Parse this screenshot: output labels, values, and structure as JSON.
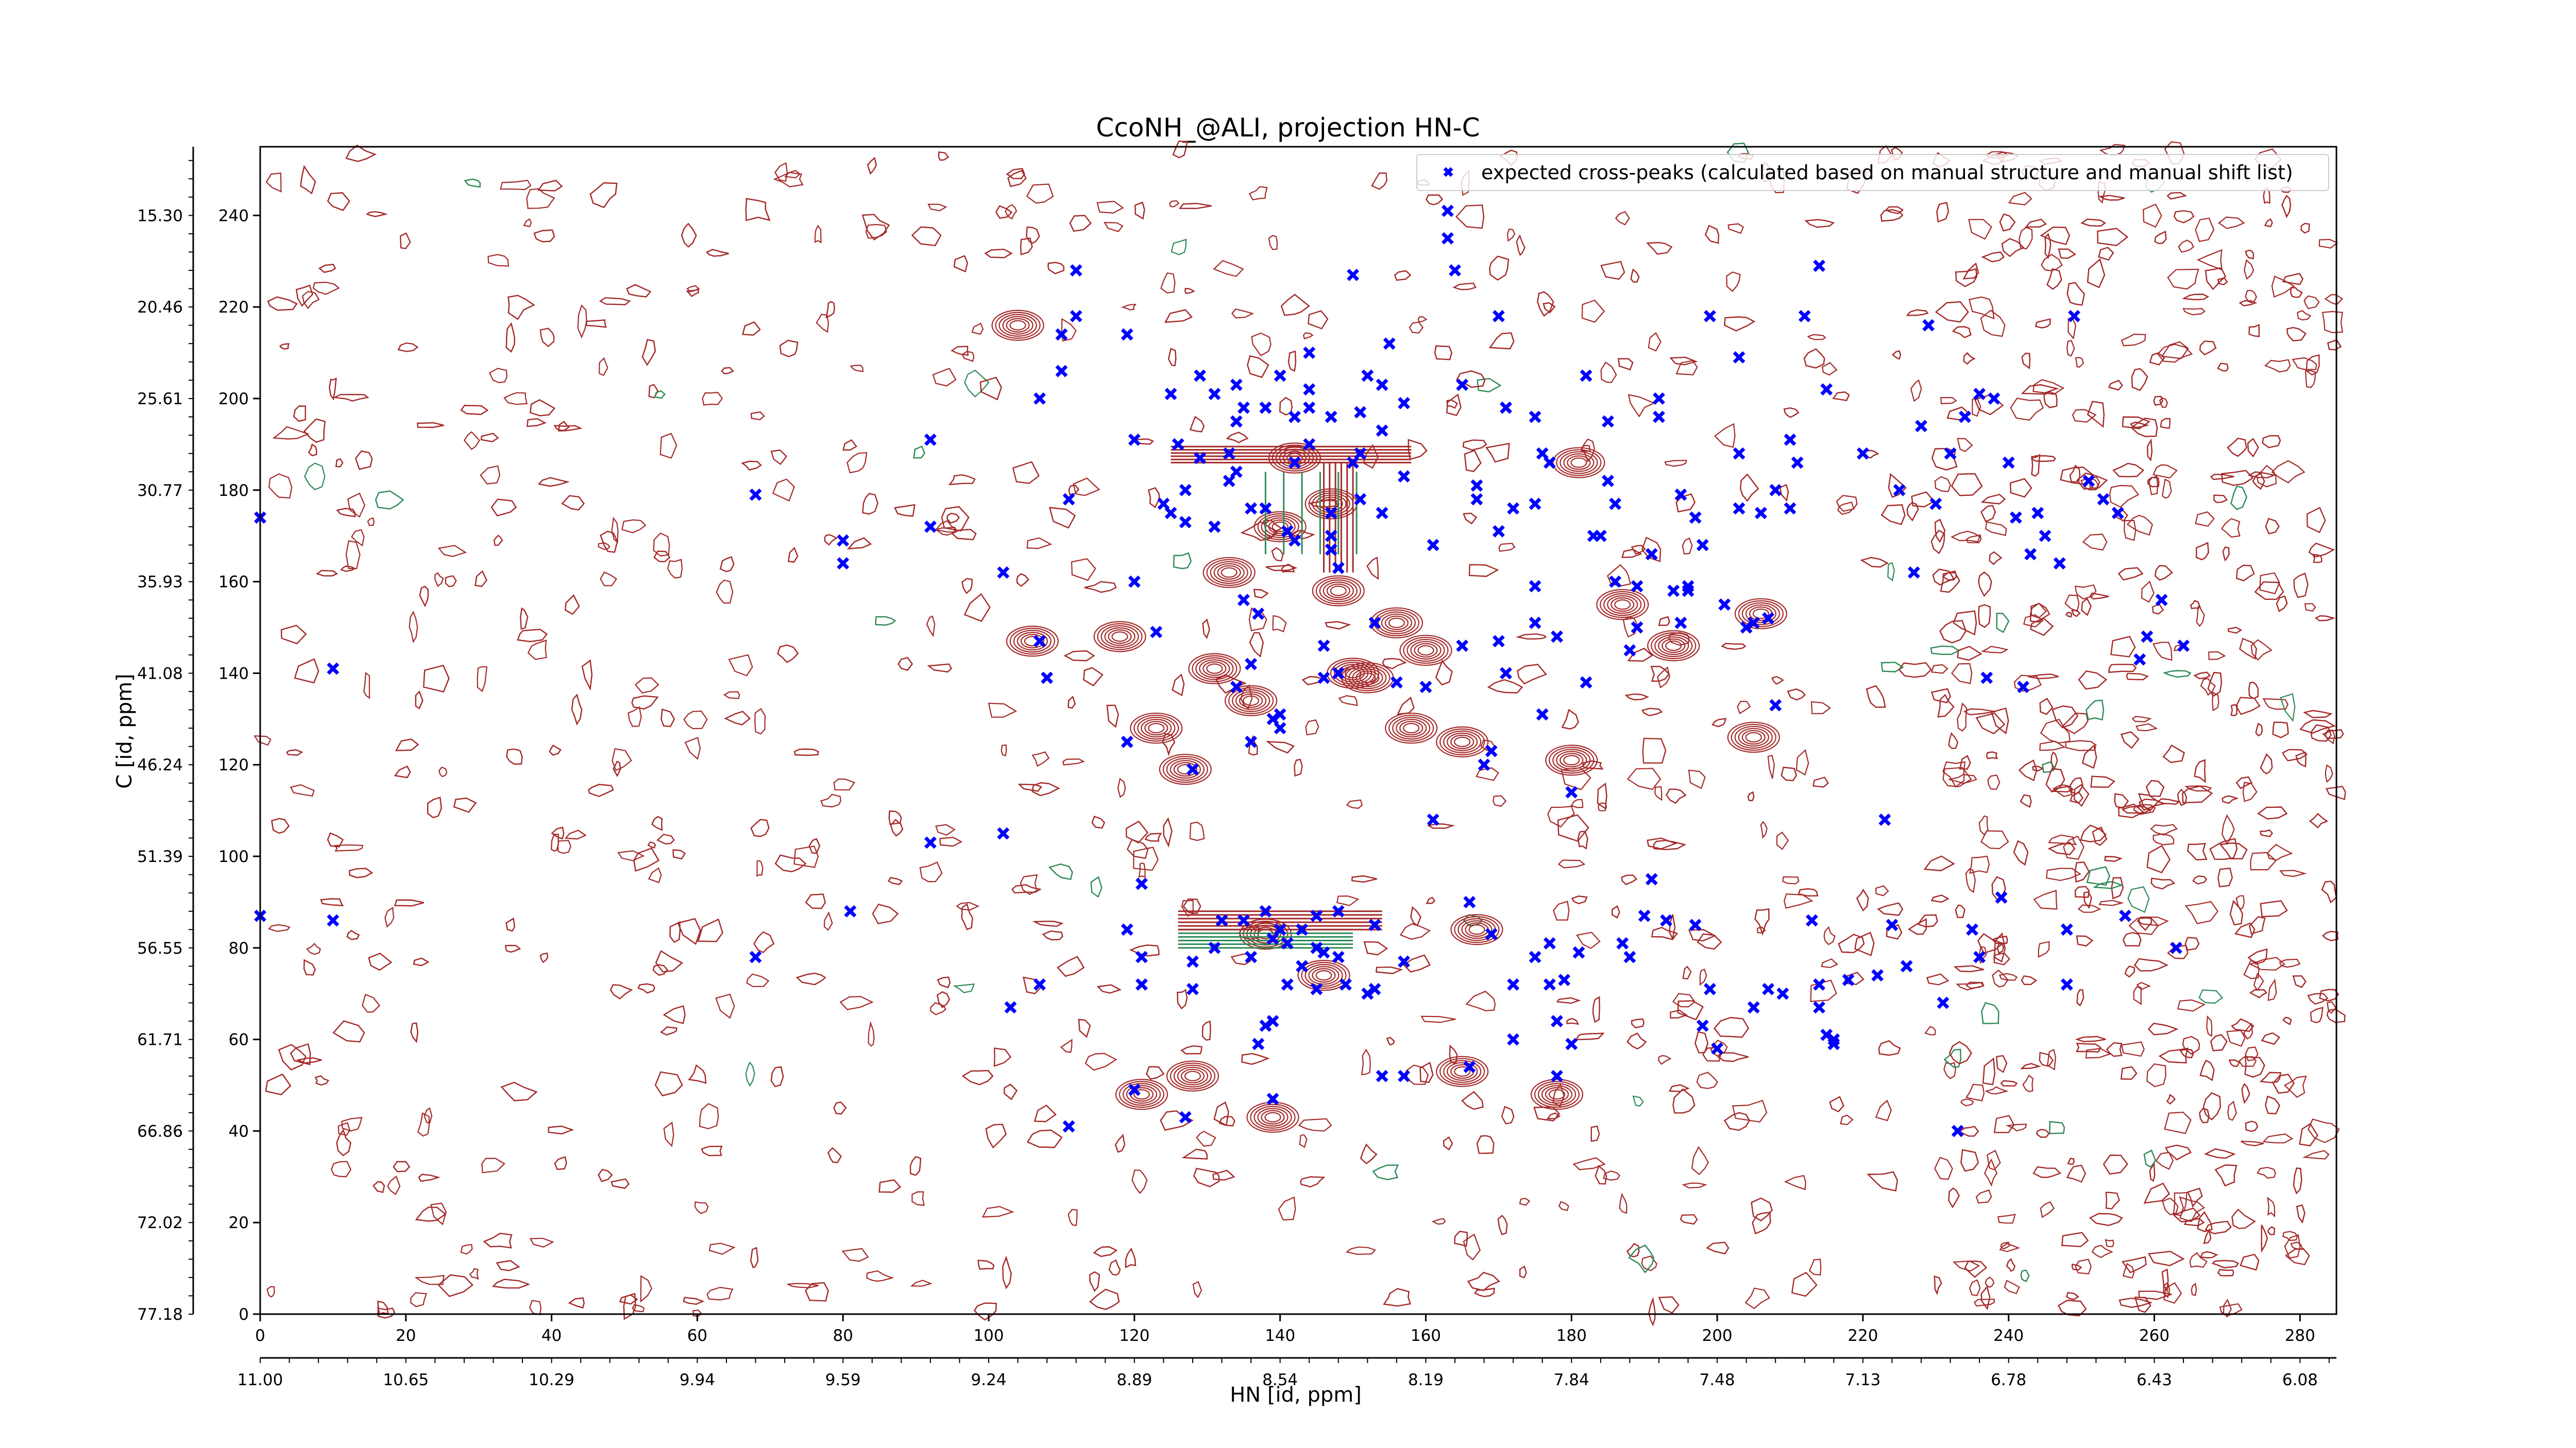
{
  "chart_data": {
    "type": "scatter",
    "title": "CcoNH_@ALI, projection HN-C",
    "xlabel": "HN [id, ppm]",
    "ylabel": "C [id, ppm]",
    "xlim": [
      0,
      285
    ],
    "ylim": [
      0,
      255
    ],
    "grid": false,
    "legend_position": "top-right",
    "x_index_ticks": [
      "0",
      "20",
      "40",
      "60",
      "80",
      "100",
      "120",
      "140",
      "160",
      "180",
      "200",
      "220",
      "240",
      "260",
      "280"
    ],
    "x_ppm_ticks": [
      "11.00",
      "10.65",
      "10.29",
      "9.94",
      "9.59",
      "9.24",
      "8.89",
      "8.54",
      "8.19",
      "7.84",
      "7.48",
      "7.13",
      "6.78",
      "6.43",
      "6.08"
    ],
    "y_index_ticks": [
      "0",
      "20",
      "40",
      "60",
      "80",
      "100",
      "120",
      "140",
      "160",
      "180",
      "200",
      "220",
      "240"
    ],
    "y_ppm_ticks": [
      "77.18",
      "72.02",
      "66.86",
      "61.71",
      "56.55",
      "51.39",
      "46.24",
      "41.08",
      "35.93",
      "30.77",
      "25.61",
      "20.46",
      "15.30"
    ],
    "colors": {
      "contour_positive": "#a52a2a",
      "contour_negative": "#2e8b57",
      "marker": "#0000ff"
    },
    "series": [
      {
        "name": "expected cross-peaks (calculated based on manual structure and manual shift list)",
        "marker": "x",
        "points": [
          [
            0,
            174
          ],
          [
            0,
            87
          ],
          [
            10,
            141
          ],
          [
            10,
            86
          ],
          [
            68,
            179
          ],
          [
            68,
            78
          ],
          [
            80,
            169
          ],
          [
            80,
            164
          ],
          [
            81,
            88
          ],
          [
            92,
            191
          ],
          [
            92,
            103
          ],
          [
            92,
            172
          ],
          [
            102,
            105
          ],
          [
            102,
            162
          ],
          [
            103,
            67
          ],
          [
            107,
            147
          ],
          [
            107,
            200
          ],
          [
            107,
            72
          ],
          [
            108,
            139
          ],
          [
            110,
            206
          ],
          [
            110,
            214
          ],
          [
            111,
            178
          ],
          [
            111,
            41
          ],
          [
            112,
            218
          ],
          [
            112,
            228
          ],
          [
            119,
            214
          ],
          [
            119,
            125
          ],
          [
            119,
            84
          ],
          [
            120,
            191
          ],
          [
            120,
            160
          ],
          [
            120,
            49
          ],
          [
            121,
            72
          ],
          [
            121,
            78
          ],
          [
            121,
            94
          ],
          [
            123,
            149
          ],
          [
            124,
            177
          ],
          [
            125,
            175
          ],
          [
            125,
            201
          ],
          [
            126,
            190
          ],
          [
            127,
            180
          ],
          [
            127,
            173
          ],
          [
            127,
            43
          ],
          [
            128,
            77
          ],
          [
            128,
            71
          ],
          [
            128,
            119
          ],
          [
            129,
            205
          ],
          [
            129,
            187
          ],
          [
            131,
            201
          ],
          [
            131,
            172
          ],
          [
            131,
            80
          ],
          [
            132,
            86
          ],
          [
            133,
            182
          ],
          [
            133,
            188
          ],
          [
            134,
            203
          ],
          [
            134,
            195
          ],
          [
            134,
            184
          ],
          [
            134,
            137
          ],
          [
            135,
            198
          ],
          [
            135,
            156
          ],
          [
            135,
            86
          ],
          [
            136,
            176
          ],
          [
            136,
            142
          ],
          [
            136,
            125
          ],
          [
            136,
            78
          ],
          [
            137,
            59
          ],
          [
            137,
            153
          ],
          [
            138,
            176
          ],
          [
            138,
            198
          ],
          [
            138,
            88
          ],
          [
            138,
            63
          ],
          [
            139,
            130
          ],
          [
            139,
            82
          ],
          [
            139,
            64
          ],
          [
            139,
            47
          ],
          [
            140,
            131
          ],
          [
            140,
            128
          ],
          [
            140,
            84
          ],
          [
            140,
            205
          ],
          [
            141,
            171
          ],
          [
            141,
            81
          ],
          [
            141,
            72
          ],
          [
            142,
            196
          ],
          [
            142,
            186
          ],
          [
            142,
            169
          ],
          [
            143,
            84
          ],
          [
            143,
            76
          ],
          [
            144,
            210
          ],
          [
            144,
            202
          ],
          [
            144,
            198
          ],
          [
            144,
            190
          ],
          [
            145,
            87
          ],
          [
            145,
            71
          ],
          [
            145,
            80
          ],
          [
            146,
            146
          ],
          [
            146,
            139
          ],
          [
            146,
            79
          ],
          [
            147,
            175
          ],
          [
            147,
            196
          ],
          [
            147,
            170
          ],
          [
            147,
            167
          ],
          [
            148,
            140
          ],
          [
            148,
            163
          ],
          [
            148,
            88
          ],
          [
            148,
            78
          ],
          [
            149,
            72
          ],
          [
            150,
            227
          ],
          [
            150,
            186
          ],
          [
            151,
            197
          ],
          [
            151,
            188
          ],
          [
            151,
            178
          ],
          [
            152,
            205
          ],
          [
            152,
            70
          ],
          [
            153,
            85
          ],
          [
            153,
            71
          ],
          [
            153,
            151
          ],
          [
            154,
            193
          ],
          [
            154,
            203
          ],
          [
            154,
            175
          ],
          [
            154,
            52
          ],
          [
            155,
            212
          ],
          [
            156,
            138
          ],
          [
            157,
            183
          ],
          [
            157,
            199
          ],
          [
            157,
            52
          ],
          [
            157,
            77
          ],
          [
            160,
            137
          ],
          [
            161,
            168
          ],
          [
            161,
            108
          ],
          [
            163,
            235
          ],
          [
            163,
            241
          ],
          [
            164,
            228
          ],
          [
            165,
            203
          ],
          [
            165,
            146
          ],
          [
            166,
            90
          ],
          [
            166,
            54
          ],
          [
            167,
            181
          ],
          [
            167,
            178
          ],
          [
            168,
            120
          ],
          [
            169,
            123
          ],
          [
            169,
            83
          ],
          [
            170,
            218
          ],
          [
            170,
            171
          ],
          [
            170,
            147
          ],
          [
            171,
            198
          ],
          [
            171,
            140
          ],
          [
            172,
            176
          ],
          [
            172,
            72
          ],
          [
            172,
            60
          ],
          [
            175,
            196
          ],
          [
            175,
            177
          ],
          [
            175,
            159
          ],
          [
            175,
            151
          ],
          [
            175,
            78
          ],
          [
            176,
            188
          ],
          [
            176,
            131
          ],
          [
            177,
            186
          ],
          [
            177,
            81
          ],
          [
            177,
            72
          ],
          [
            178,
            148
          ],
          [
            178,
            64
          ],
          [
            178,
            52
          ],
          [
            179,
            73
          ],
          [
            180,
            114
          ],
          [
            180,
            59
          ],
          [
            181,
            79
          ],
          [
            182,
            205
          ],
          [
            182,
            138
          ],
          [
            183,
            170
          ],
          [
            184,
            170
          ],
          [
            185,
            195
          ],
          [
            185,
            182
          ],
          [
            186,
            177
          ],
          [
            186,
            160
          ],
          [
            187,
            81
          ],
          [
            188,
            145
          ],
          [
            188,
            78
          ],
          [
            189,
            159
          ],
          [
            189,
            150
          ],
          [
            190,
            87
          ],
          [
            191,
            166
          ],
          [
            191,
            95
          ],
          [
            192,
            200
          ],
          [
            192,
            196
          ],
          [
            193,
            86
          ],
          [
            194,
            158
          ],
          [
            195,
            179
          ],
          [
            195,
            151
          ],
          [
            196,
            158
          ],
          [
            196,
            159
          ],
          [
            197,
            174
          ],
          [
            197,
            85
          ],
          [
            198,
            168
          ],
          [
            198,
            63
          ],
          [
            199,
            71
          ],
          [
            199,
            218
          ],
          [
            200,
            58
          ],
          [
            201,
            155
          ],
          [
            203,
            188
          ],
          [
            203,
            176
          ],
          [
            203,
            209
          ],
          [
            204,
            150
          ],
          [
            205,
            151
          ],
          [
            205,
            67
          ],
          [
            206,
            175
          ],
          [
            207,
            71
          ],
          [
            207,
            152
          ],
          [
            208,
            133
          ],
          [
            208,
            180
          ],
          [
            209,
            70
          ],
          [
            210,
            191
          ],
          [
            210,
            176
          ],
          [
            211,
            186
          ],
          [
            212,
            218
          ],
          [
            213,
            86
          ],
          [
            214,
            67
          ],
          [
            214,
            229
          ],
          [
            214,
            72
          ],
          [
            215,
            202
          ],
          [
            215,
            61
          ],
          [
            216,
            59
          ],
          [
            216,
            60
          ],
          [
            218,
            73
          ],
          [
            220,
            188
          ],
          [
            222,
            74
          ],
          [
            223,
            108
          ],
          [
            224,
            85
          ],
          [
            225,
            180
          ],
          [
            226,
            76
          ],
          [
            227,
            162
          ],
          [
            228,
            194
          ],
          [
            229,
            216
          ],
          [
            230,
            177
          ],
          [
            231,
            68
          ],
          [
            232,
            188
          ],
          [
            233,
            40
          ],
          [
            234,
            196
          ],
          [
            235,
            84
          ],
          [
            236,
            78
          ],
          [
            236,
            201
          ],
          [
            237,
            139
          ],
          [
            238,
            200
          ],
          [
            239,
            91
          ],
          [
            240,
            186
          ],
          [
            241,
            174
          ],
          [
            242,
            137
          ],
          [
            243,
            166
          ],
          [
            244,
            175
          ],
          [
            245,
            170
          ],
          [
            247,
            164
          ],
          [
            248,
            72
          ],
          [
            248,
            84
          ],
          [
            249,
            218
          ],
          [
            251,
            182
          ],
          [
            253,
            178
          ],
          [
            255,
            175
          ],
          [
            256,
            87
          ],
          [
            258,
            143
          ],
          [
            259,
            148
          ],
          [
            261,
            156
          ],
          [
            263,
            80
          ],
          [
            264,
            146
          ]
        ]
      }
    ],
    "contours": {
      "description": "dense noise contours across the full spectrum; clustered strong peaks",
      "strong_peaks": [
        [
          104,
          216
        ],
        [
          106,
          147
        ],
        [
          118,
          148
        ],
        [
          121,
          48
        ],
        [
          127,
          119
        ],
        [
          128,
          52
        ],
        [
          131,
          141
        ],
        [
          133,
          162
        ],
        [
          136,
          134
        ],
        [
          138,
          83
        ],
        [
          139,
          43
        ],
        [
          140,
          172
        ],
        [
          142,
          187
        ],
        [
          146,
          74
        ],
        [
          147,
          177
        ],
        [
          148,
          158
        ],
        [
          150,
          140
        ],
        [
          152,
          139
        ],
        [
          156,
          151
        ],
        [
          158,
          128
        ],
        [
          160,
          145
        ],
        [
          165,
          125
        ],
        [
          165,
          53
        ],
        [
          167,
          84
        ],
        [
          178,
          48
        ],
        [
          180,
          121
        ],
        [
          181,
          186
        ],
        [
          187,
          155
        ],
        [
          194,
          146
        ],
        [
          205,
          126
        ],
        [
          206,
          153
        ],
        [
          123,
          128
        ]
      ]
    }
  }
}
